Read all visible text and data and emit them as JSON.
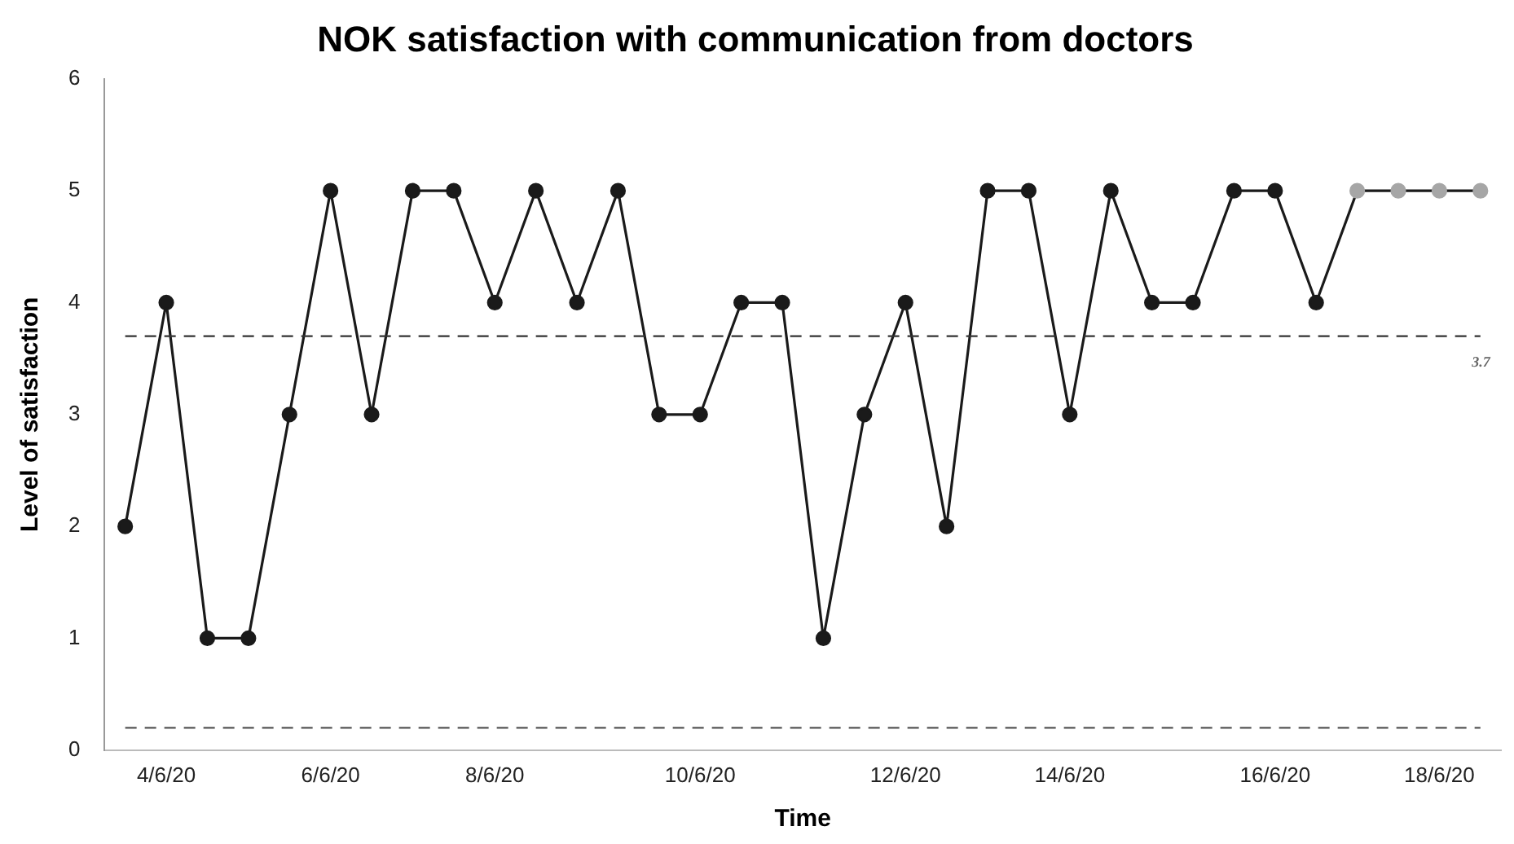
{
  "chart_data": {
    "type": "line",
    "title": "NOK satisfaction with communication from doctors",
    "xlabel": "Time",
    "ylabel": "Level of satisfaction",
    "categories": [
      null,
      "4/6/20",
      null,
      null,
      null,
      "6/6/20",
      null,
      null,
      null,
      "8/6/20",
      null,
      null,
      null,
      null,
      "10/6/20",
      null,
      null,
      null,
      null,
      "12/6/20",
      null,
      null,
      null,
      "14/6/20",
      null,
      null,
      null,
      null,
      "16/6/20",
      null,
      null,
      null,
      "18/6/20",
      null
    ],
    "series": [
      {
        "color": "#1a1a1a",
        "values": [
          2,
          4,
          1,
          1,
          3,
          5,
          3,
          5,
          5,
          4,
          5,
          4,
          5,
          3,
          3,
          4,
          4,
          1,
          3,
          4,
          2,
          5,
          5,
          3,
          5,
          4,
          4,
          5,
          5,
          4,
          5,
          5,
          5,
          5
        ],
        "colors": [
          "#1a1a1a",
          "#1a1a1a",
          "#1a1a1a",
          "#1a1a1a",
          "#1a1a1a",
          "#1a1a1a",
          "#1a1a1a",
          "#1a1a1a",
          "#1a1a1a",
          "#1a1a1a",
          "#1a1a1a",
          "#1a1a1a",
          "#1a1a1a",
          "#1a1a1a",
          "#1a1a1a",
          "#1a1a1a",
          "#1a1a1a",
          "#1a1a1a",
          "#1a1a1a",
          "#1a1a1a",
          "#1a1a1a",
          "#1a1a1a",
          "#1a1a1a",
          "#1a1a1a",
          "#1a1a1a",
          "#1a1a1a",
          "#1a1a1a",
          "#1a1a1a",
          "#1a1a1a",
          "#1a1a1a",
          "#a6a6a6",
          "#a6a6a6",
          "#a6a6a6",
          "#a6a6a6"
        ]
      }
    ],
    "ylim": [
      0,
      6
    ],
    "yticks": [
      0,
      1,
      2,
      3,
      4,
      5,
      6
    ],
    "grid": false,
    "legend": false,
    "marker": "circle",
    "line_style": "solid",
    "ref_lines": [
      {
        "axis": "y",
        "value": 3.7,
        "label": "3.7",
        "color": "#333333",
        "line_style": "dashed"
      },
      {
        "axis": "y",
        "value": 0.2,
        "color": "#555555",
        "line_style": "dashed"
      }
    ]
  }
}
